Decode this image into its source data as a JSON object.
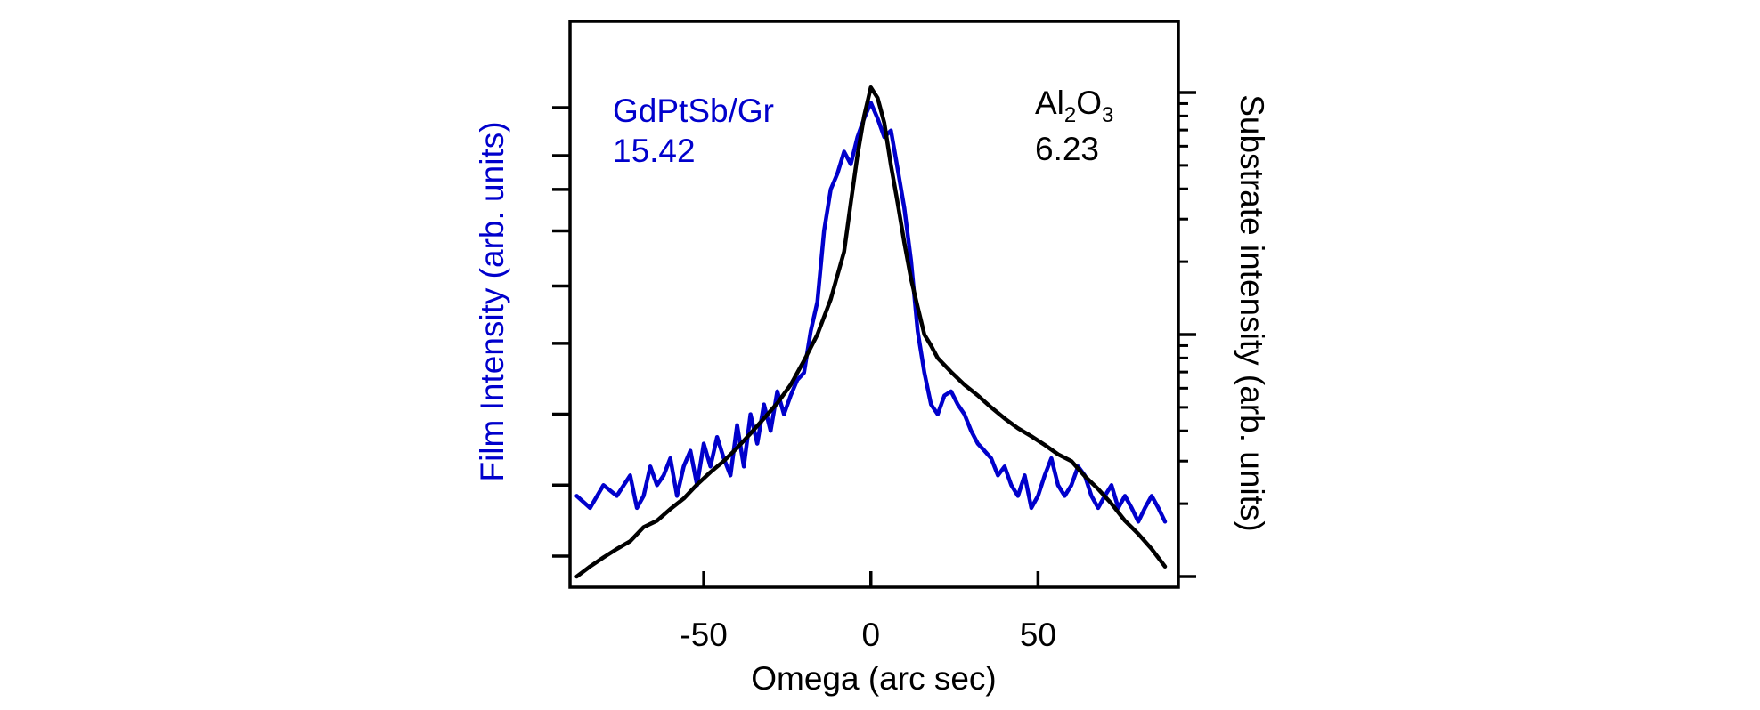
{
  "chart_data": {
    "type": "line",
    "xlabel": "Omega (arc sec)",
    "ylabel_left": "Film Intensity (arb. units)",
    "ylabel_right": "Substrate intensity (arb. units)",
    "xlim": [
      -90,
      92
    ],
    "x_ticks": [
      -50,
      0,
      50
    ],
    "x_tick_labels": [
      "-50",
      "0",
      "50"
    ],
    "y_left_scale": "log",
    "y_left_ticks": [
      5,
      10,
      20,
      40,
      70,
      120,
      180,
      250,
      400
    ],
    "y_right_scale": "log",
    "y_right_major_ticks": [
      1,
      10,
      100
    ],
    "y_right_minor_ticks": [
      2,
      3,
      4,
      5,
      6,
      7,
      8,
      9,
      20,
      30,
      40,
      50,
      60,
      70,
      80,
      90
    ],
    "grid": false,
    "series": [
      {
        "name": "GdPtSb/Gr",
        "axis": "left",
        "color": "#0000cc",
        "fwhm_label": "15.42",
        "x": [
          -88,
          -84,
          -80,
          -76,
          -72,
          -70,
          -68,
          -66,
          -64,
          -62,
          -60,
          -58,
          -56,
          -54,
          -52,
          -50,
          -48,
          -46,
          -44,
          -42,
          -40,
          -38,
          -36,
          -34,
          -32,
          -30,
          -28,
          -26,
          -24,
          -22,
          -20,
          -18,
          -16,
          -14,
          -12,
          -10,
          -8,
          -6,
          -4,
          -2,
          0,
          2,
          4,
          6,
          8,
          10,
          12,
          14,
          16,
          18,
          20,
          22,
          24,
          26,
          28,
          30,
          32,
          34,
          36,
          38,
          40,
          42,
          44,
          46,
          48,
          50,
          52,
          54,
          56,
          58,
          60,
          62,
          64,
          66,
          68,
          70,
          72,
          74,
          76,
          78,
          80,
          82,
          84,
          86,
          88
        ],
        "y": [
          9,
          8,
          10,
          9,
          11,
          8,
          9,
          12,
          10,
          11,
          13,
          9,
          12,
          14,
          10,
          15,
          12,
          16,
          13,
          11,
          18,
          12,
          20,
          15,
          22,
          17,
          25,
          20,
          24,
          28,
          30,
          45,
          60,
          120,
          180,
          210,
          260,
          230,
          300,
          360,
          420,
          360,
          300,
          320,
          220,
          150,
          90,
          45,
          30,
          22,
          20,
          24,
          25,
          22,
          20,
          17,
          15,
          14,
          13,
          11,
          12,
          10,
          9,
          11,
          8,
          9,
          11,
          13,
          10,
          9,
          10,
          12,
          11,
          9,
          8,
          9,
          10,
          8,
          9,
          8,
          7,
          8,
          9,
          8,
          7
        ]
      },
      {
        "name": "Al2O3",
        "label_main": "Al",
        "label_sub1": "2",
        "label_mid": "O",
        "label_sub2": "3",
        "axis": "right",
        "color": "#000000",
        "fwhm_label": "6.23",
        "x": [
          -88,
          -84,
          -80,
          -76,
          -72,
          -68,
          -64,
          -60,
          -56,
          -52,
          -48,
          -44,
          -40,
          -36,
          -32,
          -28,
          -24,
          -20,
          -16,
          -12,
          -8,
          -6,
          -4,
          -2,
          0,
          2,
          4,
          6,
          8,
          10,
          12,
          14,
          16,
          18,
          20,
          24,
          28,
          32,
          36,
          40,
          44,
          48,
          52,
          56,
          60,
          64,
          68,
          72,
          76,
          80,
          84,
          88
        ],
        "y": [
          1.0,
          1.1,
          1.2,
          1.3,
          1.4,
          1.6,
          1.7,
          1.9,
          2.1,
          2.4,
          2.7,
          3.0,
          3.4,
          3.9,
          4.5,
          5.2,
          6.2,
          7.8,
          10,
          14,
          22,
          35,
          55,
          80,
          105,
          95,
          75,
          50,
          35,
          24,
          17,
          13,
          10,
          9,
          8,
          7,
          6.2,
          5.6,
          5.0,
          4.5,
          4.1,
          3.8,
          3.5,
          3.2,
          3.0,
          2.6,
          2.3,
          2.0,
          1.7,
          1.5,
          1.3,
          1.1
        ]
      }
    ]
  }
}
